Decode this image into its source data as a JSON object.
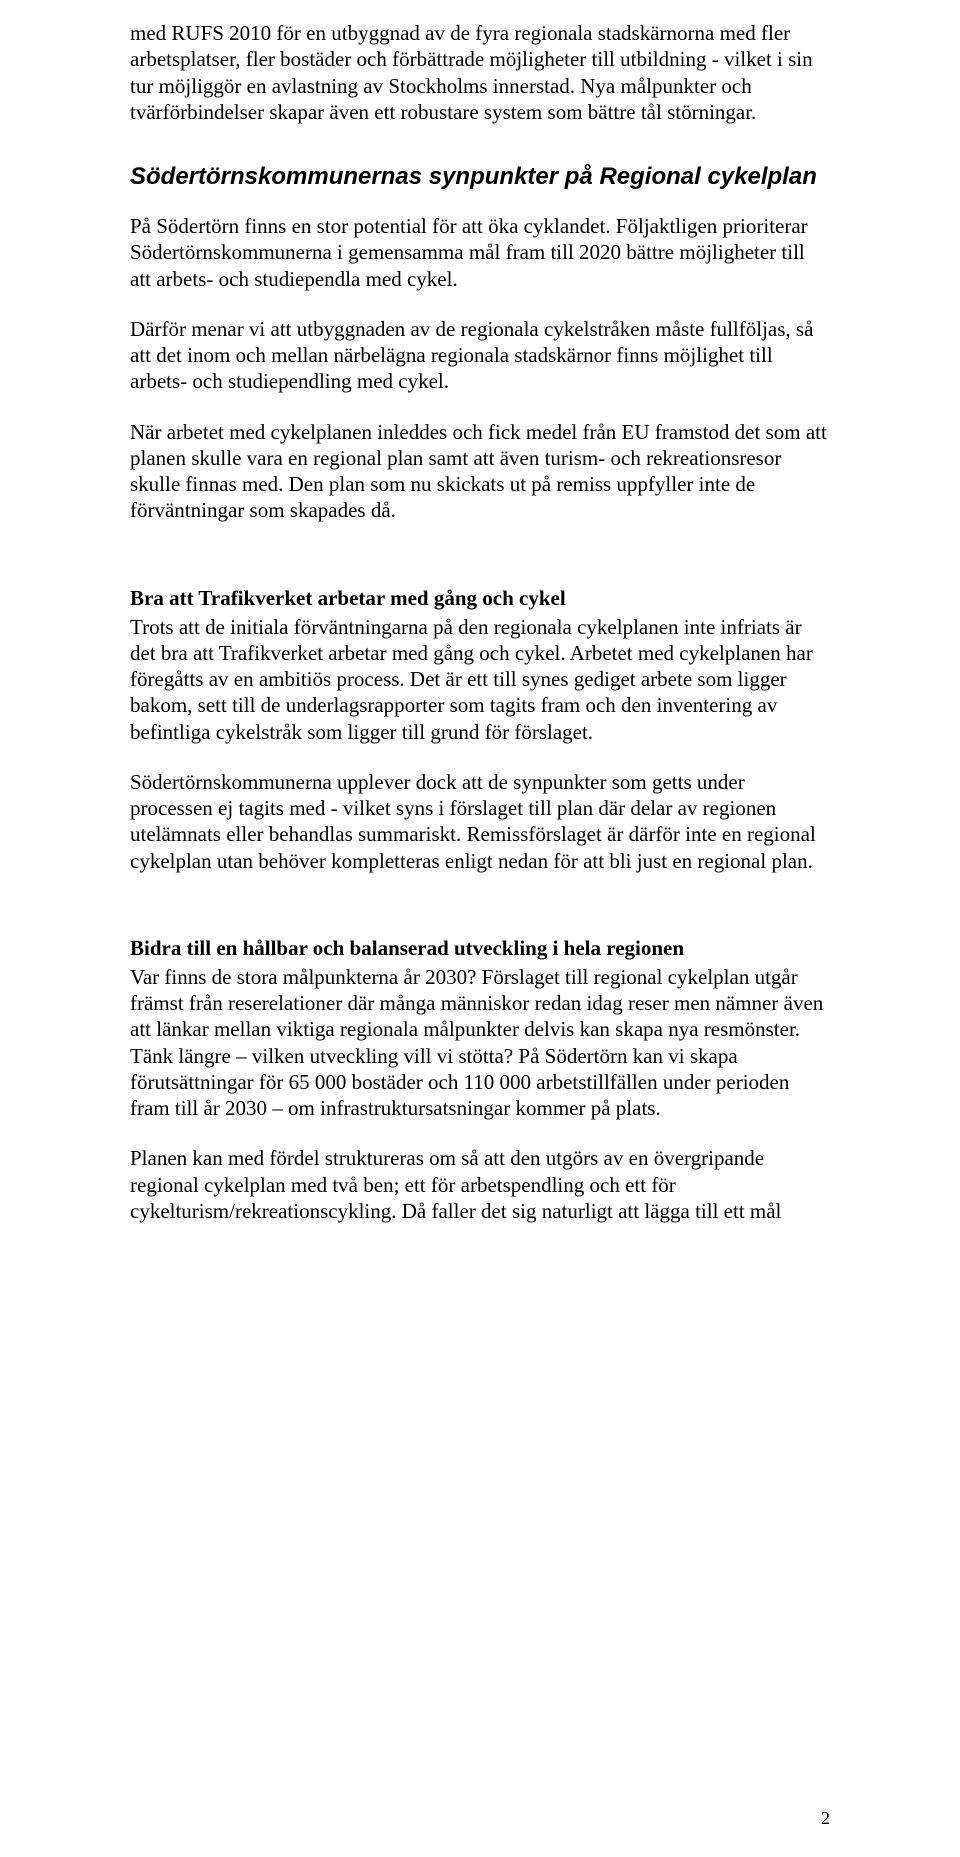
{
  "intro_para": "med RUFS 2010 för en utbyggnad av de fyra regionala stadskärnorna med fler arbetsplatser, fler bostäder och förbättrade möjligheter till utbildning - vilket i sin tur möjliggör en avlastning av Stockholms innerstad. Nya målpunkter och tvärförbindelser skapar även ett robustare system som bättre tål störningar.",
  "section1": {
    "title": "Södertörnskommunernas synpunkter på Regional cykelplan",
    "p1": "På Södertörn finns en stor potential för att öka cyklandet. Följaktligen prioriterar Södertörnskommunerna i gemensamma mål fram till 2020 bättre möjligheter till att arbets- och studiependla med cykel.",
    "p2": "Därför menar vi att utbyggnaden av de regionala cykelstråken måste fullföljas, så att det inom och mellan närbelägna regionala stadskärnor finns möjlighet till arbets- och studiependling med cykel.",
    "p3": "När arbetet med cykelplanen inleddes och fick medel från EU framstod det som att planen skulle vara en regional plan samt att även turism- och rekreationsresor skulle finnas med. Den plan som nu skickats ut på remiss uppfyller inte de förväntningar som skapades då."
  },
  "section2": {
    "title": "Bra att Trafikverket arbetar med gång och cykel",
    "p1": "Trots att de initiala förväntningarna på den regionala cykelplanen inte infriats är det bra att Trafikverket arbetar med gång och cykel. Arbetet med cykelplanen har föregåtts av en ambitiös process. Det är ett till synes gediget arbete som ligger bakom, sett till de underlagsrapporter som tagits fram och den inventering av befintliga cykelstråk som ligger till grund för förslaget.",
    "p2": "Södertörnskommunerna upplever dock att de synpunkter som getts under processen ej tagits med - vilket syns i förslaget till plan där delar av regionen utelämnats eller behandlas summariskt. Remissförslaget är därför inte en regional cykelplan utan behöver kompletteras enligt nedan för att bli just en regional plan."
  },
  "section3": {
    "title": "Bidra till en hållbar och balanserad utveckling i hela regionen",
    "p1": "Var finns de stora målpunkterna år 2030? Förslaget till regional cykelplan utgår främst från reserelationer där många människor redan idag reser men nämner även att länkar mellan viktiga regionala målpunkter delvis kan skapa nya resmönster. Tänk längre – vilken utveckling vill vi stötta? På Södertörn kan vi skapa förutsättningar för 65 000 bostäder och 110 000 arbetstillfällen under perioden fram till år 2030 – om infrastruktursatsningar kommer på plats.",
    "p2": "Planen kan med fördel struktureras om så att den utgörs av en övergripande regional cykelplan med två ben; ett för arbetspendling och ett för cykelturism/rekreationscykling. Då faller det sig naturligt att lägga till ett mål"
  },
  "page_number": "2"
}
